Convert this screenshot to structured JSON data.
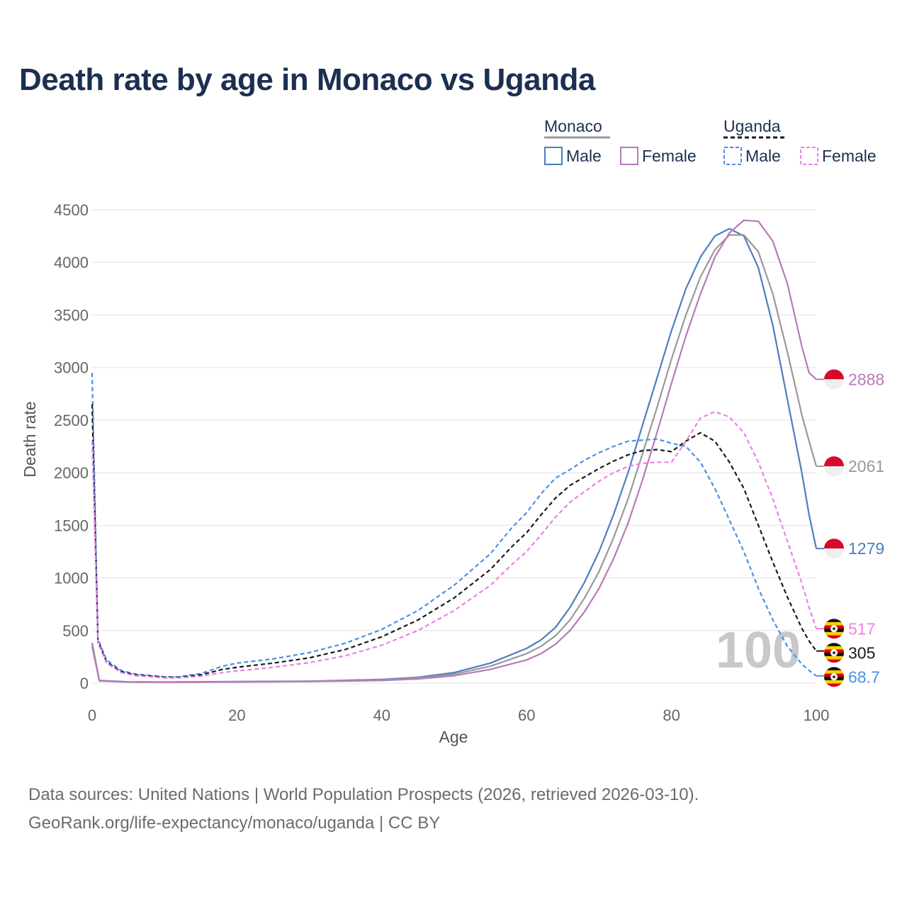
{
  "chart_data": {
    "type": "line",
    "title": "Death rate by age in Monaco vs Uganda",
    "xlabel": "Age",
    "ylabel": "Death rate",
    "xlim": [
      0,
      100
    ],
    "ylim": [
      0,
      4500
    ],
    "x_ticks": [
      "0",
      "20",
      "40",
      "60",
      "80",
      "100"
    ],
    "y_ticks": [
      "0",
      "500",
      "1000",
      "1500",
      "2000",
      "2500",
      "3000",
      "3500",
      "4000",
      "4500"
    ],
    "watermark": "100",
    "legend": {
      "groups": [
        {
          "name": "Monaco",
          "style": "solid",
          "entries": [
            "Male",
            "Female"
          ]
        },
        {
          "name": "Uganda",
          "style": "dashed",
          "entries": [
            "Male",
            "Female"
          ]
        }
      ]
    },
    "series": [
      {
        "name": "Monaco Male",
        "country": "Monaco",
        "sex": "Male",
        "color": "#4a7fc1",
        "dashed": false,
        "end_label": "1279",
        "points": [
          [
            0,
            380
          ],
          [
            1,
            25
          ],
          [
            5,
            12
          ],
          [
            10,
            10
          ],
          [
            20,
            15
          ],
          [
            30,
            18
          ],
          [
            40,
            35
          ],
          [
            45,
            55
          ],
          [
            50,
            100
          ],
          [
            55,
            190
          ],
          [
            60,
            330
          ],
          [
            62,
            410
          ],
          [
            64,
            530
          ],
          [
            66,
            720
          ],
          [
            68,
            960
          ],
          [
            70,
            1250
          ],
          [
            72,
            1600
          ],
          [
            74,
            2000
          ],
          [
            76,
            2450
          ],
          [
            78,
            2900
          ],
          [
            80,
            3350
          ],
          [
            82,
            3750
          ],
          [
            84,
            4050
          ],
          [
            86,
            4250
          ],
          [
            88,
            4320
          ],
          [
            90,
            4250
          ],
          [
            92,
            3950
          ],
          [
            94,
            3400
          ],
          [
            96,
            2700
          ],
          [
            98,
            2000
          ],
          [
            99,
            1600
          ],
          [
            100,
            1279
          ]
        ]
      },
      {
        "name": "Monaco Total",
        "country": "Monaco",
        "sex": "Total",
        "color": "#999999",
        "dashed": false,
        "end_label": "2061",
        "points": [
          [
            0,
            370
          ],
          [
            1,
            22
          ],
          [
            5,
            11
          ],
          [
            10,
            9
          ],
          [
            20,
            13
          ],
          [
            30,
            17
          ],
          [
            40,
            30
          ],
          [
            45,
            48
          ],
          [
            50,
            85
          ],
          [
            55,
            160
          ],
          [
            60,
            280
          ],
          [
            62,
            350
          ],
          [
            64,
            450
          ],
          [
            66,
            600
          ],
          [
            68,
            810
          ],
          [
            70,
            1060
          ],
          [
            72,
            1380
          ],
          [
            74,
            1750
          ],
          [
            76,
            2180
          ],
          [
            78,
            2620
          ],
          [
            80,
            3080
          ],
          [
            82,
            3500
          ],
          [
            84,
            3860
          ],
          [
            86,
            4120
          ],
          [
            88,
            4260
          ],
          [
            90,
            4260
          ],
          [
            92,
            4100
          ],
          [
            94,
            3700
          ],
          [
            96,
            3150
          ],
          [
            98,
            2550
          ],
          [
            99,
            2300
          ],
          [
            100,
            2061
          ]
        ]
      },
      {
        "name": "Monaco Female",
        "country": "Monaco",
        "sex": "Female",
        "color": "#b77ab7",
        "dashed": false,
        "end_label": "2888",
        "points": [
          [
            0,
            350
          ],
          [
            1,
            20
          ],
          [
            5,
            10
          ],
          [
            10,
            8
          ],
          [
            20,
            11
          ],
          [
            30,
            15
          ],
          [
            40,
            25
          ],
          [
            45,
            40
          ],
          [
            50,
            70
          ],
          [
            55,
            130
          ],
          [
            60,
            220
          ],
          [
            62,
            280
          ],
          [
            64,
            370
          ],
          [
            66,
            500
          ],
          [
            68,
            680
          ],
          [
            70,
            900
          ],
          [
            72,
            1180
          ],
          [
            74,
            1520
          ],
          [
            76,
            1930
          ],
          [
            78,
            2380
          ],
          [
            80,
            2850
          ],
          [
            82,
            3300
          ],
          [
            84,
            3700
          ],
          [
            86,
            4050
          ],
          [
            88,
            4280
          ],
          [
            90,
            4400
          ],
          [
            92,
            4390
          ],
          [
            94,
            4200
          ],
          [
            96,
            3800
          ],
          [
            98,
            3200
          ],
          [
            99,
            2950
          ],
          [
            100,
            2888
          ]
        ]
      },
      {
        "name": "Uganda Male",
        "country": "Uganda",
        "sex": "Male",
        "color": "#4a8fe7",
        "dashed": true,
        "end_label": "68.7",
        "points": [
          [
            0,
            2950
          ],
          [
            0.8,
            420
          ],
          [
            2,
            220
          ],
          [
            4,
            120
          ],
          [
            6,
            85
          ],
          [
            10,
            60
          ],
          [
            12,
            60
          ],
          [
            15,
            90
          ],
          [
            18,
            160
          ],
          [
            20,
            190
          ],
          [
            25,
            230
          ],
          [
            30,
            290
          ],
          [
            35,
            380
          ],
          [
            40,
            510
          ],
          [
            45,
            690
          ],
          [
            50,
            930
          ],
          [
            55,
            1230
          ],
          [
            58,
            1480
          ],
          [
            60,
            1620
          ],
          [
            62,
            1800
          ],
          [
            64,
            1950
          ],
          [
            66,
            2030
          ],
          [
            68,
            2120
          ],
          [
            70,
            2190
          ],
          [
            72,
            2250
          ],
          [
            74,
            2300
          ],
          [
            76,
            2310
          ],
          [
            78,
            2320
          ],
          [
            80,
            2280
          ],
          [
            82,
            2250
          ],
          [
            84,
            2100
          ],
          [
            86,
            1850
          ],
          [
            88,
            1550
          ],
          [
            90,
            1250
          ],
          [
            92,
            900
          ],
          [
            94,
            600
          ],
          [
            96,
            350
          ],
          [
            98,
            180
          ],
          [
            99,
            120
          ],
          [
            100,
            68.7
          ]
        ]
      },
      {
        "name": "Uganda Total",
        "country": "Uganda",
        "sex": "Total",
        "color": "#1a1a1a",
        "dashed": true,
        "end_label": "305",
        "points": [
          [
            0,
            2650
          ],
          [
            0.8,
            400
          ],
          [
            2,
            200
          ],
          [
            4,
            110
          ],
          [
            6,
            78
          ],
          [
            10,
            55
          ],
          [
            12,
            55
          ],
          [
            15,
            78
          ],
          [
            18,
            130
          ],
          [
            20,
            150
          ],
          [
            25,
            190
          ],
          [
            30,
            240
          ],
          [
            35,
            320
          ],
          [
            40,
            440
          ],
          [
            45,
            600
          ],
          [
            50,
            810
          ],
          [
            55,
            1080
          ],
          [
            58,
            1300
          ],
          [
            60,
            1430
          ],
          [
            62,
            1600
          ],
          [
            64,
            1760
          ],
          [
            66,
            1880
          ],
          [
            68,
            1960
          ],
          [
            70,
            2040
          ],
          [
            72,
            2110
          ],
          [
            74,
            2170
          ],
          [
            76,
            2210
          ],
          [
            78,
            2220
          ],
          [
            80,
            2200
          ],
          [
            82,
            2300
          ],
          [
            84,
            2380
          ],
          [
            86,
            2300
          ],
          [
            88,
            2100
          ],
          [
            90,
            1850
          ],
          [
            92,
            1500
          ],
          [
            94,
            1150
          ],
          [
            96,
            820
          ],
          [
            98,
            520
          ],
          [
            99,
            400
          ],
          [
            100,
            305
          ]
        ]
      },
      {
        "name": "Uganda Female",
        "country": "Uganda",
        "sex": "Female",
        "color": "#f07ee8",
        "dashed": true,
        "end_label": "517",
        "points": [
          [
            0,
            2300
          ],
          [
            0.8,
            380
          ],
          [
            2,
            190
          ],
          [
            4,
            100
          ],
          [
            6,
            70
          ],
          [
            10,
            50
          ],
          [
            12,
            50
          ],
          [
            15,
            65
          ],
          [
            18,
            100
          ],
          [
            20,
            115
          ],
          [
            25,
            150
          ],
          [
            30,
            195
          ],
          [
            35,
            260
          ],
          [
            40,
            360
          ],
          [
            45,
            500
          ],
          [
            50,
            690
          ],
          [
            55,
            930
          ],
          [
            58,
            1130
          ],
          [
            60,
            1250
          ],
          [
            62,
            1410
          ],
          [
            64,
            1580
          ],
          [
            66,
            1720
          ],
          [
            68,
            1820
          ],
          [
            70,
            1920
          ],
          [
            72,
            2000
          ],
          [
            74,
            2060
          ],
          [
            76,
            2090
          ],
          [
            78,
            2100
          ],
          [
            80,
            2100
          ],
          [
            82,
            2300
          ],
          [
            84,
            2520
          ],
          [
            86,
            2580
          ],
          [
            88,
            2530
          ],
          [
            90,
            2380
          ],
          [
            92,
            2100
          ],
          [
            94,
            1750
          ],
          [
            96,
            1350
          ],
          [
            98,
            950
          ],
          [
            99,
            720
          ],
          [
            100,
            517
          ]
        ]
      }
    ]
  },
  "footer": {
    "line1": "Data sources: United Nations | World Population Prospects (2026, retrieved 2026-03-10).",
    "line2": "GeoRank.org/life-expectancy/monaco/uganda | CC BY"
  }
}
